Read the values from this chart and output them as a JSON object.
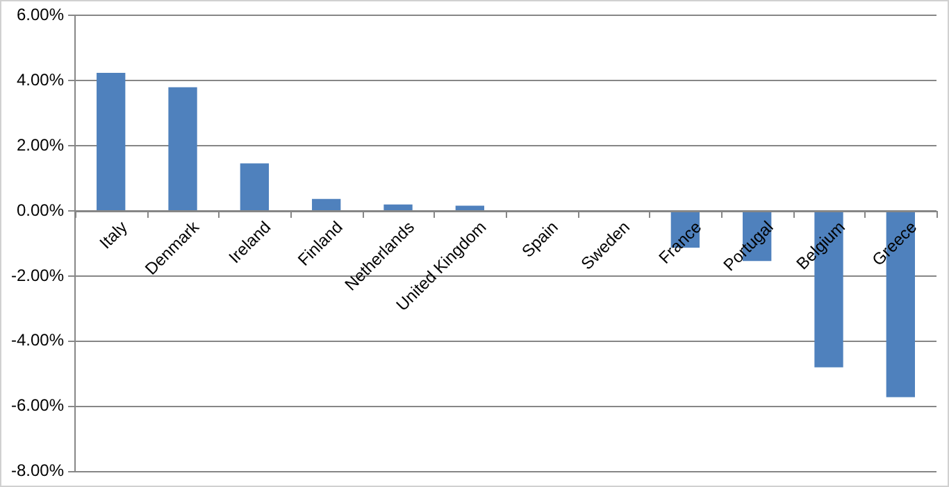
{
  "chart_data": {
    "type": "bar",
    "categories": [
      "Italy",
      "Denmark",
      "Ireland",
      "Finland",
      "Netherlands",
      "United Kingdom",
      "Spain",
      "Sweden",
      "France",
      "Portugal",
      "Belgium",
      "Greece"
    ],
    "values": [
      4.24,
      3.8,
      1.46,
      0.37,
      0.2,
      0.16,
      0.02,
      0,
      -1.13,
      -1.54,
      -4.8,
      -5.72
    ],
    "color": "#4f81bd",
    "ylim": [
      -8,
      6
    ],
    "yticks": [
      {
        "value": -8,
        "label": "-8.00%"
      },
      {
        "value": -6,
        "label": "-6.00%"
      },
      {
        "value": -4,
        "label": "-4.00%"
      },
      {
        "value": -2,
        "label": "-2.00%"
      },
      {
        "value": 0,
        "label": "0.00%"
      },
      {
        "value": 2,
        "label": "2.00%"
      },
      {
        "value": 4,
        "label": "4.00%"
      },
      {
        "value": 6,
        "label": "6.00%"
      }
    ],
    "grid": "y",
    "legend": false
  }
}
